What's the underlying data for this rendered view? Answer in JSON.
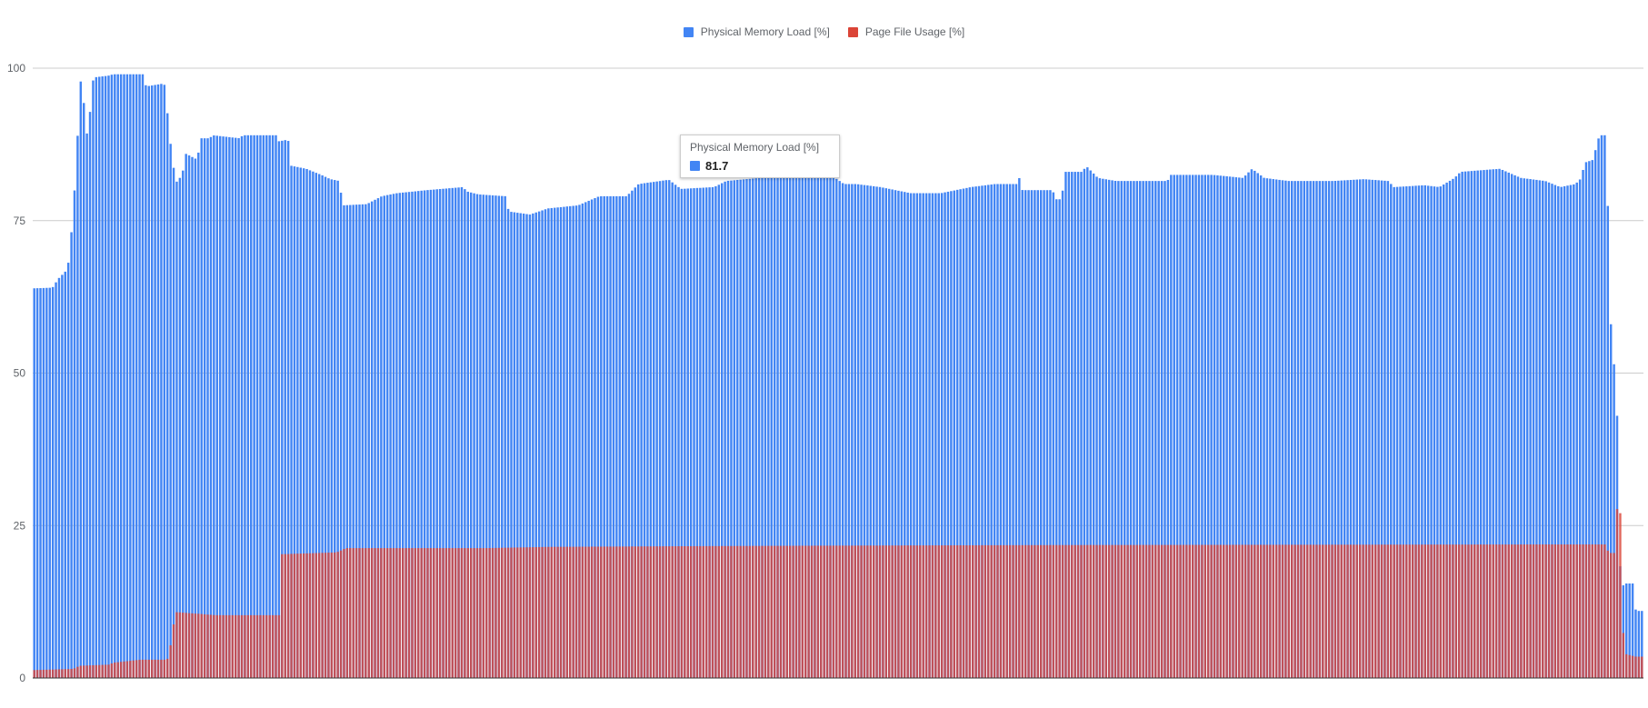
{
  "chart_data": {
    "type": "bar",
    "title": "",
    "xlabel": "",
    "ylabel": "",
    "ylim": [
      0,
      100
    ],
    "yticks": [
      0,
      25,
      50,
      75,
      100
    ],
    "grid": true,
    "legend_position": "top-center",
    "stacking": "overlapped",
    "num_bars": 520,
    "series": [
      {
        "name": "Physical Memory Load [%]",
        "color": "#4285f4",
        "profile": [
          [
            0,
            63.9
          ],
          [
            6,
            64.0
          ],
          [
            8,
            65.5
          ],
          [
            11,
            67.0
          ],
          [
            12,
            71.0
          ],
          [
            13,
            78.0
          ],
          [
            14,
            84.0
          ],
          [
            15,
            98.0
          ],
          [
            16,
            97.5
          ],
          [
            17,
            89.5
          ],
          [
            18,
            89.0
          ],
          [
            19,
            97.5
          ],
          [
            20,
            98.5
          ],
          [
            25,
            98.8
          ],
          [
            26,
            99.0
          ],
          [
            36,
            99.0
          ],
          [
            37,
            97.0
          ],
          [
            43,
            97.5
          ],
          [
            44,
            93.0
          ],
          [
            45,
            88.0
          ],
          [
            46,
            84.0
          ],
          [
            47,
            81.3
          ],
          [
            49,
            82.5
          ],
          [
            50,
            86.0
          ],
          [
            54,
            85.0
          ],
          [
            55,
            88.5
          ],
          [
            58,
            88.5
          ],
          [
            59,
            89.0
          ],
          [
            68,
            88.5
          ],
          [
            69,
            89.0
          ],
          [
            80,
            89.0
          ],
          [
            81,
            88.0
          ],
          [
            84,
            88.3
          ],
          [
            85,
            84.0
          ],
          [
            90,
            83.5
          ],
          [
            95,
            82.5
          ],
          [
            98,
            81.8
          ],
          [
            101,
            81.5
          ],
          [
            102,
            77.5
          ],
          [
            110,
            77.7
          ],
          [
            115,
            79.0
          ],
          [
            120,
            79.5
          ],
          [
            130,
            80.0
          ],
          [
            142,
            80.5
          ],
          [
            143,
            79.8
          ],
          [
            147,
            79.3
          ],
          [
            156,
            79.0
          ],
          [
            157,
            76.5
          ],
          [
            164,
            76.0
          ],
          [
            170,
            77.0
          ],
          [
            180,
            77.5
          ],
          [
            187,
            79.0
          ],
          [
            196,
            79.0
          ],
          [
            198,
            80.0
          ],
          [
            200,
            81.0
          ],
          [
            210,
            81.7
          ],
          [
            214,
            80.2
          ],
          [
            225,
            80.5
          ],
          [
            229,
            81.5
          ],
          [
            240,
            82.0
          ],
          [
            255,
            82.5
          ],
          [
            262,
            83.0
          ],
          [
            268,
            81.0
          ],
          [
            272,
            81.0
          ],
          [
            280,
            80.5
          ],
          [
            290,
            79.5
          ],
          [
            300,
            79.5
          ],
          [
            310,
            80.5
          ],
          [
            318,
            81.0
          ],
          [
            325,
            81.0
          ],
          [
            326,
            82.0
          ],
          [
            327,
            80.0
          ],
          [
            337,
            80.0
          ],
          [
            338,
            78.5
          ],
          [
            340,
            78.5
          ],
          [
            341,
            83.0
          ],
          [
            347,
            83.0
          ],
          [
            348,
            84.0
          ],
          [
            350,
            83.0
          ],
          [
            352,
            82.0
          ],
          [
            358,
            81.5
          ],
          [
            375,
            81.5
          ],
          [
            376,
            82.5
          ],
          [
            390,
            82.5
          ],
          [
            400,
            82.0
          ],
          [
            403,
            83.5
          ],
          [
            407,
            82.0
          ],
          [
            415,
            81.5
          ],
          [
            430,
            81.5
          ],
          [
            440,
            81.8
          ],
          [
            448,
            81.5
          ],
          [
            450,
            80.5
          ],
          [
            460,
            80.8
          ],
          [
            465,
            80.5
          ],
          [
            470,
            82.0
          ],
          [
            472,
            83.0
          ],
          [
            485,
            83.5
          ],
          [
            492,
            82.0
          ],
          [
            500,
            81.5
          ],
          [
            505,
            80.5
          ],
          [
            510,
            81.0
          ],
          [
            512,
            82.0
          ],
          [
            513,
            84.5
          ],
          [
            516,
            85.0
          ],
          [
            517,
            87.5
          ],
          [
            518,
            89.0
          ],
          [
            520,
            89.0
          ],
          [
            521,
            73.0
          ],
          [
            522,
            53.0
          ],
          [
            523,
            51.0
          ],
          [
            524,
            41.0
          ],
          [
            525,
            13.5
          ],
          [
            526,
            15.5
          ],
          [
            529,
            15.5
          ],
          [
            530,
            11.0
          ],
          [
            532,
            11.0
          ]
        ]
      },
      {
        "name": "Page File Usage [%]",
        "color": "#db4437",
        "profile": [
          [
            0,
            1.3
          ],
          [
            13,
            1.5
          ],
          [
            15,
            2.0
          ],
          [
            25,
            2.2
          ],
          [
            26,
            2.5
          ],
          [
            35,
            3.0
          ],
          [
            44,
            3.0
          ],
          [
            45,
            5.0
          ],
          [
            46,
            8.5
          ],
          [
            47,
            10.8
          ],
          [
            55,
            10.5
          ],
          [
            60,
            10.3
          ],
          [
            81,
            10.3
          ],
          [
            82,
            20.3
          ],
          [
            100,
            20.6
          ],
          [
            102,
            21.0
          ],
          [
            103,
            21.3
          ],
          [
            150,
            21.3
          ],
          [
            170,
            21.5
          ],
          [
            210,
            21.6
          ],
          [
            260,
            21.7
          ],
          [
            340,
            21.8
          ],
          [
            500,
            21.9
          ],
          [
            520,
            21.9
          ],
          [
            521,
            20.5
          ],
          [
            523,
            20.5
          ],
          [
            524,
            29.5
          ],
          [
            525,
            26.5
          ],
          [
            526,
            4.0
          ],
          [
            530,
            3.5
          ],
          [
            532,
            3.5
          ]
        ]
      }
    ]
  },
  "tooltip": {
    "title": "Physical Memory Load [%]",
    "value": "81.7",
    "color": "#4285f4"
  }
}
